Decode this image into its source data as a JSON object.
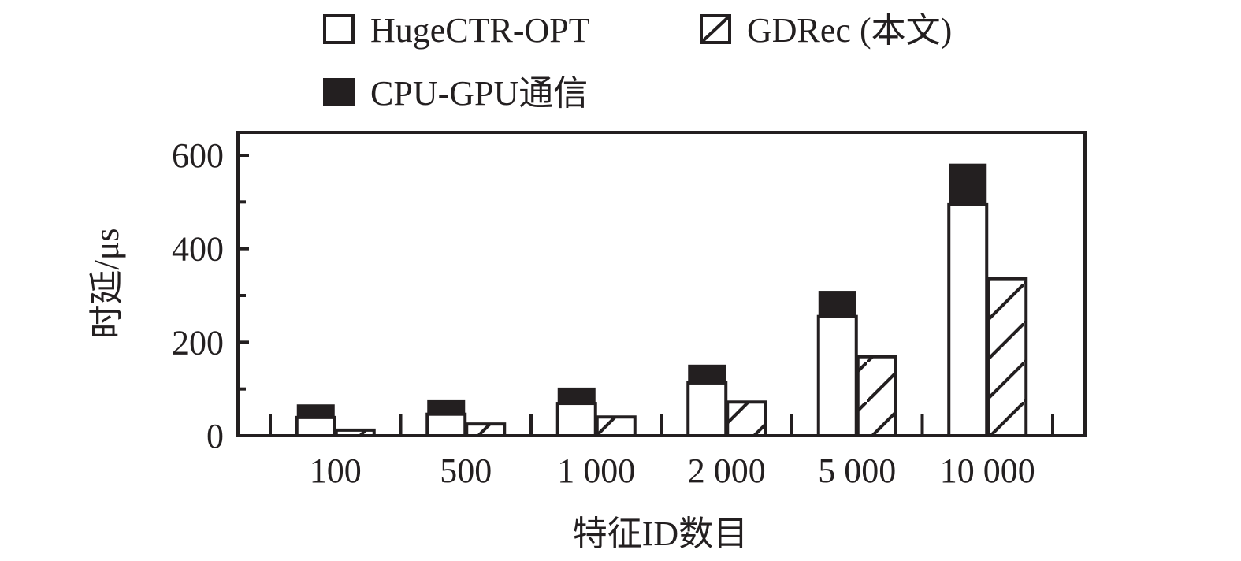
{
  "chart_data": {
    "type": "bar",
    "stacked_first_series": true,
    "title": "",
    "xlabel": "特征ID数目",
    "ylabel": "时延/μs",
    "ylim": [
      0,
      650
    ],
    "yticks": [
      0,
      200,
      400,
      600
    ],
    "ytick_labels": [
      "0",
      "200",
      "400",
      "600"
    ],
    "categories": [
      "100",
      "500",
      "1 000",
      "2 000",
      "5 000",
      "10 000"
    ],
    "series": [
      {
        "name": "HugeCTR-OPT",
        "pattern": "white",
        "values": [
          39,
          46,
          69,
          113,
          255,
          494
        ]
      },
      {
        "name": "CPU-GPU通信",
        "pattern": "black",
        "stacked_on": "HugeCTR-OPT",
        "values": [
          28,
          30,
          34,
          39,
          55,
          88
        ]
      },
      {
        "name": "GDRec (本文)",
        "pattern": "hatched",
        "values": [
          12,
          25,
          40,
          72,
          169,
          336
        ]
      }
    ],
    "legend": {
      "placement": "top",
      "entries": [
        "HugeCTR-OPT",
        "GDRec (本文)",
        "CPU-GPU通信"
      ]
    },
    "grid": false
  },
  "colors": {
    "ink": "#231f20",
    "background": "#ffffff"
  }
}
